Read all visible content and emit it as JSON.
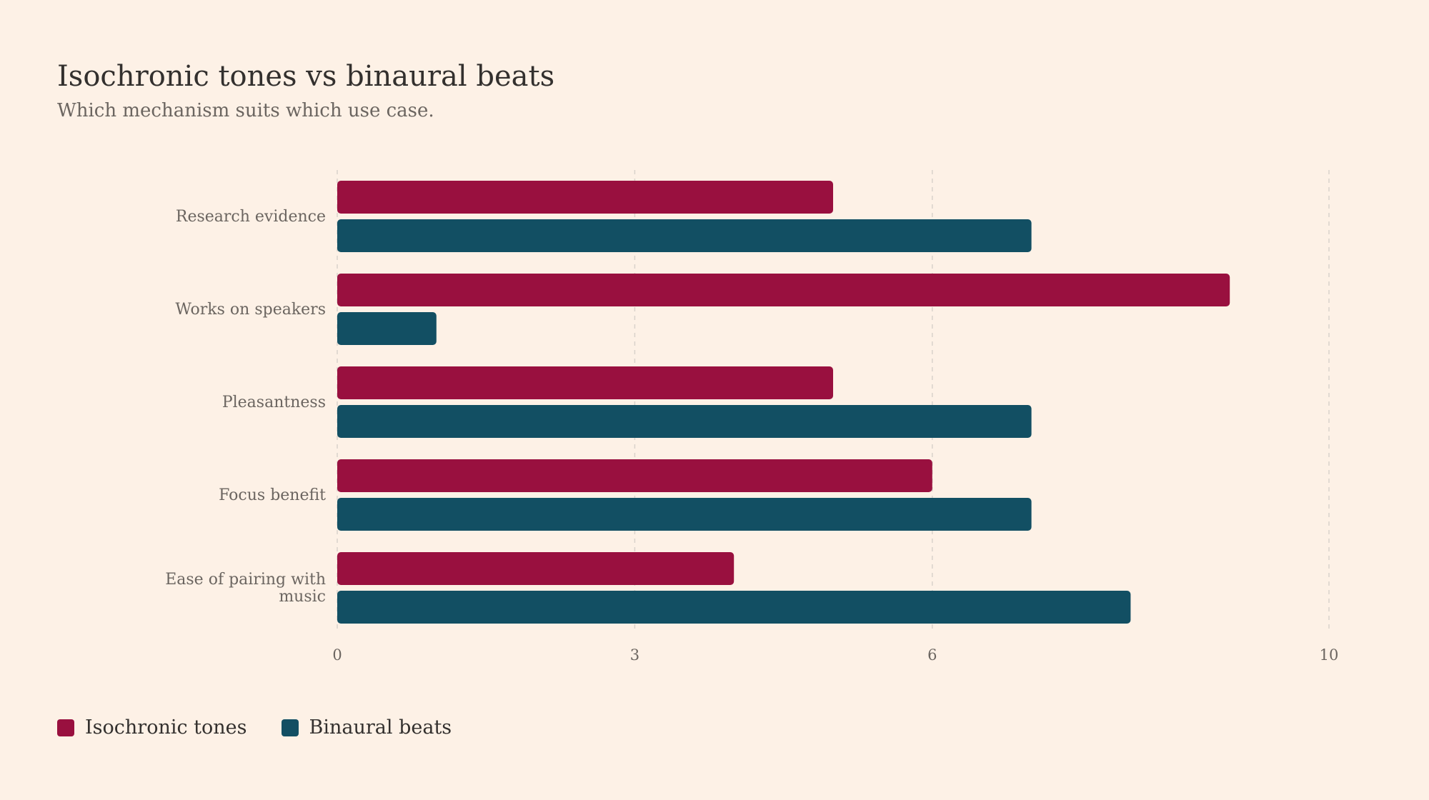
{
  "header": {
    "title": "Isochronic tones vs binaural beats",
    "subtitle": "Which mechanism suits which use case."
  },
  "colors": {
    "background": "#fdf1e6",
    "isochronic": "#99103f",
    "binaural": "#124f63",
    "grid": "#d9d2cb"
  },
  "legend": {
    "items": [
      {
        "label": "Isochronic tones",
        "color": "#99103f"
      },
      {
        "label": "Binaural beats",
        "color": "#124f63"
      }
    ],
    "placement": "bottom-left"
  },
  "chart_data": {
    "type": "bar",
    "orientation": "horizontal",
    "title": "Isochronic tones vs binaural beats",
    "subtitle": "Which mechanism suits which use case.",
    "categories": [
      "Research evidence",
      "Works on speakers",
      "Pleasantness",
      "Focus benefit",
      "Ease of pairing with music"
    ],
    "series": [
      {
        "name": "Isochronic tones",
        "values": [
          5,
          9,
          5,
          6,
          4
        ]
      },
      {
        "name": "Binaural beats",
        "values": [
          7,
          1,
          7,
          7,
          8
        ]
      }
    ],
    "xlim": [
      0,
      10
    ],
    "xticks": [
      0,
      3,
      6,
      10
    ],
    "grid": "vertical dashed",
    "legend": "bottom-left"
  }
}
